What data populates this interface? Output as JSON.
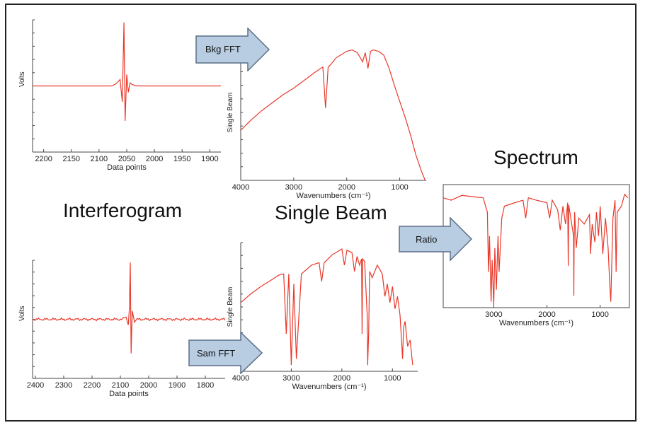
{
  "labels": {
    "interferogram": "Interferogram",
    "single_beam": "Single Beam",
    "spectrum": "Spectrum"
  },
  "arrows": {
    "bkg_fft": "Bkg FFT",
    "sam_fft": "Sam FFT",
    "ratio": "Ratio"
  },
  "colors": {
    "trace": "#e8382a",
    "arrow_fill": "#b8cde2",
    "arrow_stroke": "#5a6e86",
    "axis": "#444444"
  },
  "chart_data": [
    {
      "id": "bkg-interferogram",
      "type": "line",
      "xlabel": "Data points",
      "ylabel": "Volts",
      "xlim": [
        2220,
        1880
      ],
      "ticks": [
        2200,
        2150,
        2100,
        2050,
        2000,
        1950,
        1900
      ],
      "center": 2055,
      "x": [
        2220,
        2080,
        2070,
        2062,
        2058,
        2055,
        2053,
        2050,
        2047,
        2044,
        2040,
        2030,
        2000,
        1880
      ],
      "y": [
        0,
        0,
        0.03,
        0.1,
        -0.25,
        1.0,
        -0.55,
        0.18,
        -0.1,
        0.05,
        0.02,
        0,
        0,
        0
      ]
    },
    {
      "id": "sam-interferogram",
      "type": "line",
      "xlabel": "Data points",
      "ylabel": "Volts",
      "xlim": [
        2410,
        1730
      ],
      "ticks": [
        2400,
        2300,
        2200,
        2100,
        2000,
        1900,
        1800
      ],
      "center": 2065,
      "x": [
        2410,
        2080,
        2072,
        2068,
        2065,
        2062,
        2058,
        2050,
        1730
      ],
      "y": [
        0,
        0.04,
        -0.1,
        0.2,
        1.0,
        -0.6,
        0.15,
        -0.05,
        0
      ]
    },
    {
      "id": "bkg-single-beam",
      "type": "line",
      "xlabel": "Wavenumbers (cm⁻¹)",
      "ylabel": "Single Beam",
      "xlim": [
        4000,
        500
      ],
      "ticks": [
        4000,
        3000,
        2000,
        1000
      ],
      "x": [
        4000,
        3800,
        3600,
        3400,
        3200,
        3000,
        2800,
        2600,
        2450,
        2400,
        2350,
        2300,
        2200,
        2000,
        1900,
        1800,
        1700,
        1650,
        1600,
        1550,
        1500,
        1400,
        1300,
        1200,
        1100,
        1000,
        900,
        800,
        700,
        600,
        520
      ],
      "y": [
        0.38,
        0.46,
        0.53,
        0.59,
        0.65,
        0.7,
        0.76,
        0.82,
        0.86,
        0.55,
        0.86,
        0.88,
        0.93,
        0.98,
        0.99,
        0.97,
        0.9,
        0.97,
        0.85,
        0.98,
        0.99,
        0.98,
        0.95,
        0.85,
        0.72,
        0.6,
        0.48,
        0.35,
        0.2,
        0.08,
        0
      ]
    },
    {
      "id": "sam-single-beam",
      "type": "line",
      "xlabel": "Wavenumbers (cm⁻¹)",
      "ylabel": "Single Beam",
      "xlim": [
        4000,
        500
      ],
      "ticks": [
        4000,
        3000,
        2000,
        1000
      ],
      "x": [
        4000,
        3800,
        3600,
        3400,
        3250,
        3150,
        3100,
        3050,
        3000,
        2950,
        2900,
        2800,
        2600,
        2450,
        2400,
        2350,
        2200,
        2000,
        1950,
        1900,
        1800,
        1750,
        1700,
        1650,
        1610,
        1600,
        1590,
        1550,
        1500,
        1490,
        1470,
        1450,
        1400,
        1300,
        1200,
        1150,
        1100,
        1050,
        1000,
        950,
        900,
        850,
        820,
        800,
        780,
        750,
        700,
        650,
        600
      ],
      "y": [
        0.55,
        0.62,
        0.68,
        0.73,
        0.77,
        0.78,
        0.3,
        0.78,
        0.05,
        0.7,
        0.1,
        0.78,
        0.85,
        0.87,
        0.72,
        0.87,
        0.93,
        0.98,
        0.85,
        0.97,
        0.95,
        0.8,
        0.92,
        0.85,
        0.9,
        0.3,
        0.9,
        0.88,
        0.45,
        0.05,
        0.3,
        0.8,
        0.75,
        0.85,
        0.78,
        0.6,
        0.7,
        0.55,
        0.68,
        0.5,
        0.6,
        0.45,
        0.25,
        0.1,
        0.35,
        0.4,
        0.2,
        0.25,
        0.05
      ]
    },
    {
      "id": "spectrum",
      "type": "line",
      "xlabel": "Wavenumbers (cm⁻¹)",
      "ylabel": "",
      "xlim": [
        3950,
        450
      ],
      "ticks": [
        3000,
        2000,
        1000
      ],
      "x": [
        3950,
        3800,
        3600,
        3400,
        3200,
        3120,
        3100,
        3080,
        3050,
        3030,
        3000,
        2980,
        2950,
        2920,
        2900,
        2850,
        2800,
        2600,
        2450,
        2400,
        2350,
        2200,
        2000,
        1950,
        1900,
        1800,
        1750,
        1700,
        1650,
        1610,
        1600,
        1590,
        1500,
        1495,
        1490,
        1480,
        1450,
        1400,
        1300,
        1200,
        1180,
        1150,
        1100,
        1070,
        1030,
        1000,
        950,
        900,
        850,
        820,
        800,
        780,
        760,
        720,
        700,
        680,
        600,
        540,
        480
      ],
      "y": [
        0.92,
        0.9,
        0.94,
        0.93,
        0.92,
        0.8,
        0.3,
        0.6,
        0.05,
        0.4,
        0.02,
        0.5,
        0.15,
        0.6,
        0.3,
        0.75,
        0.85,
        0.88,
        0.9,
        0.75,
        0.92,
        0.9,
        0.88,
        0.75,
        0.9,
        0.82,
        0.65,
        0.85,
        0.7,
        0.88,
        0.35,
        0.86,
        0.6,
        0.1,
        0.55,
        0.8,
        0.5,
        0.75,
        0.7,
        0.78,
        0.45,
        0.7,
        0.55,
        0.8,
        0.6,
        0.85,
        0.45,
        0.75,
        0.5,
        0.2,
        0.05,
        0.4,
        0.75,
        0.9,
        0.3,
        0.8,
        0.85,
        0.95,
        0.92
      ]
    }
  ]
}
